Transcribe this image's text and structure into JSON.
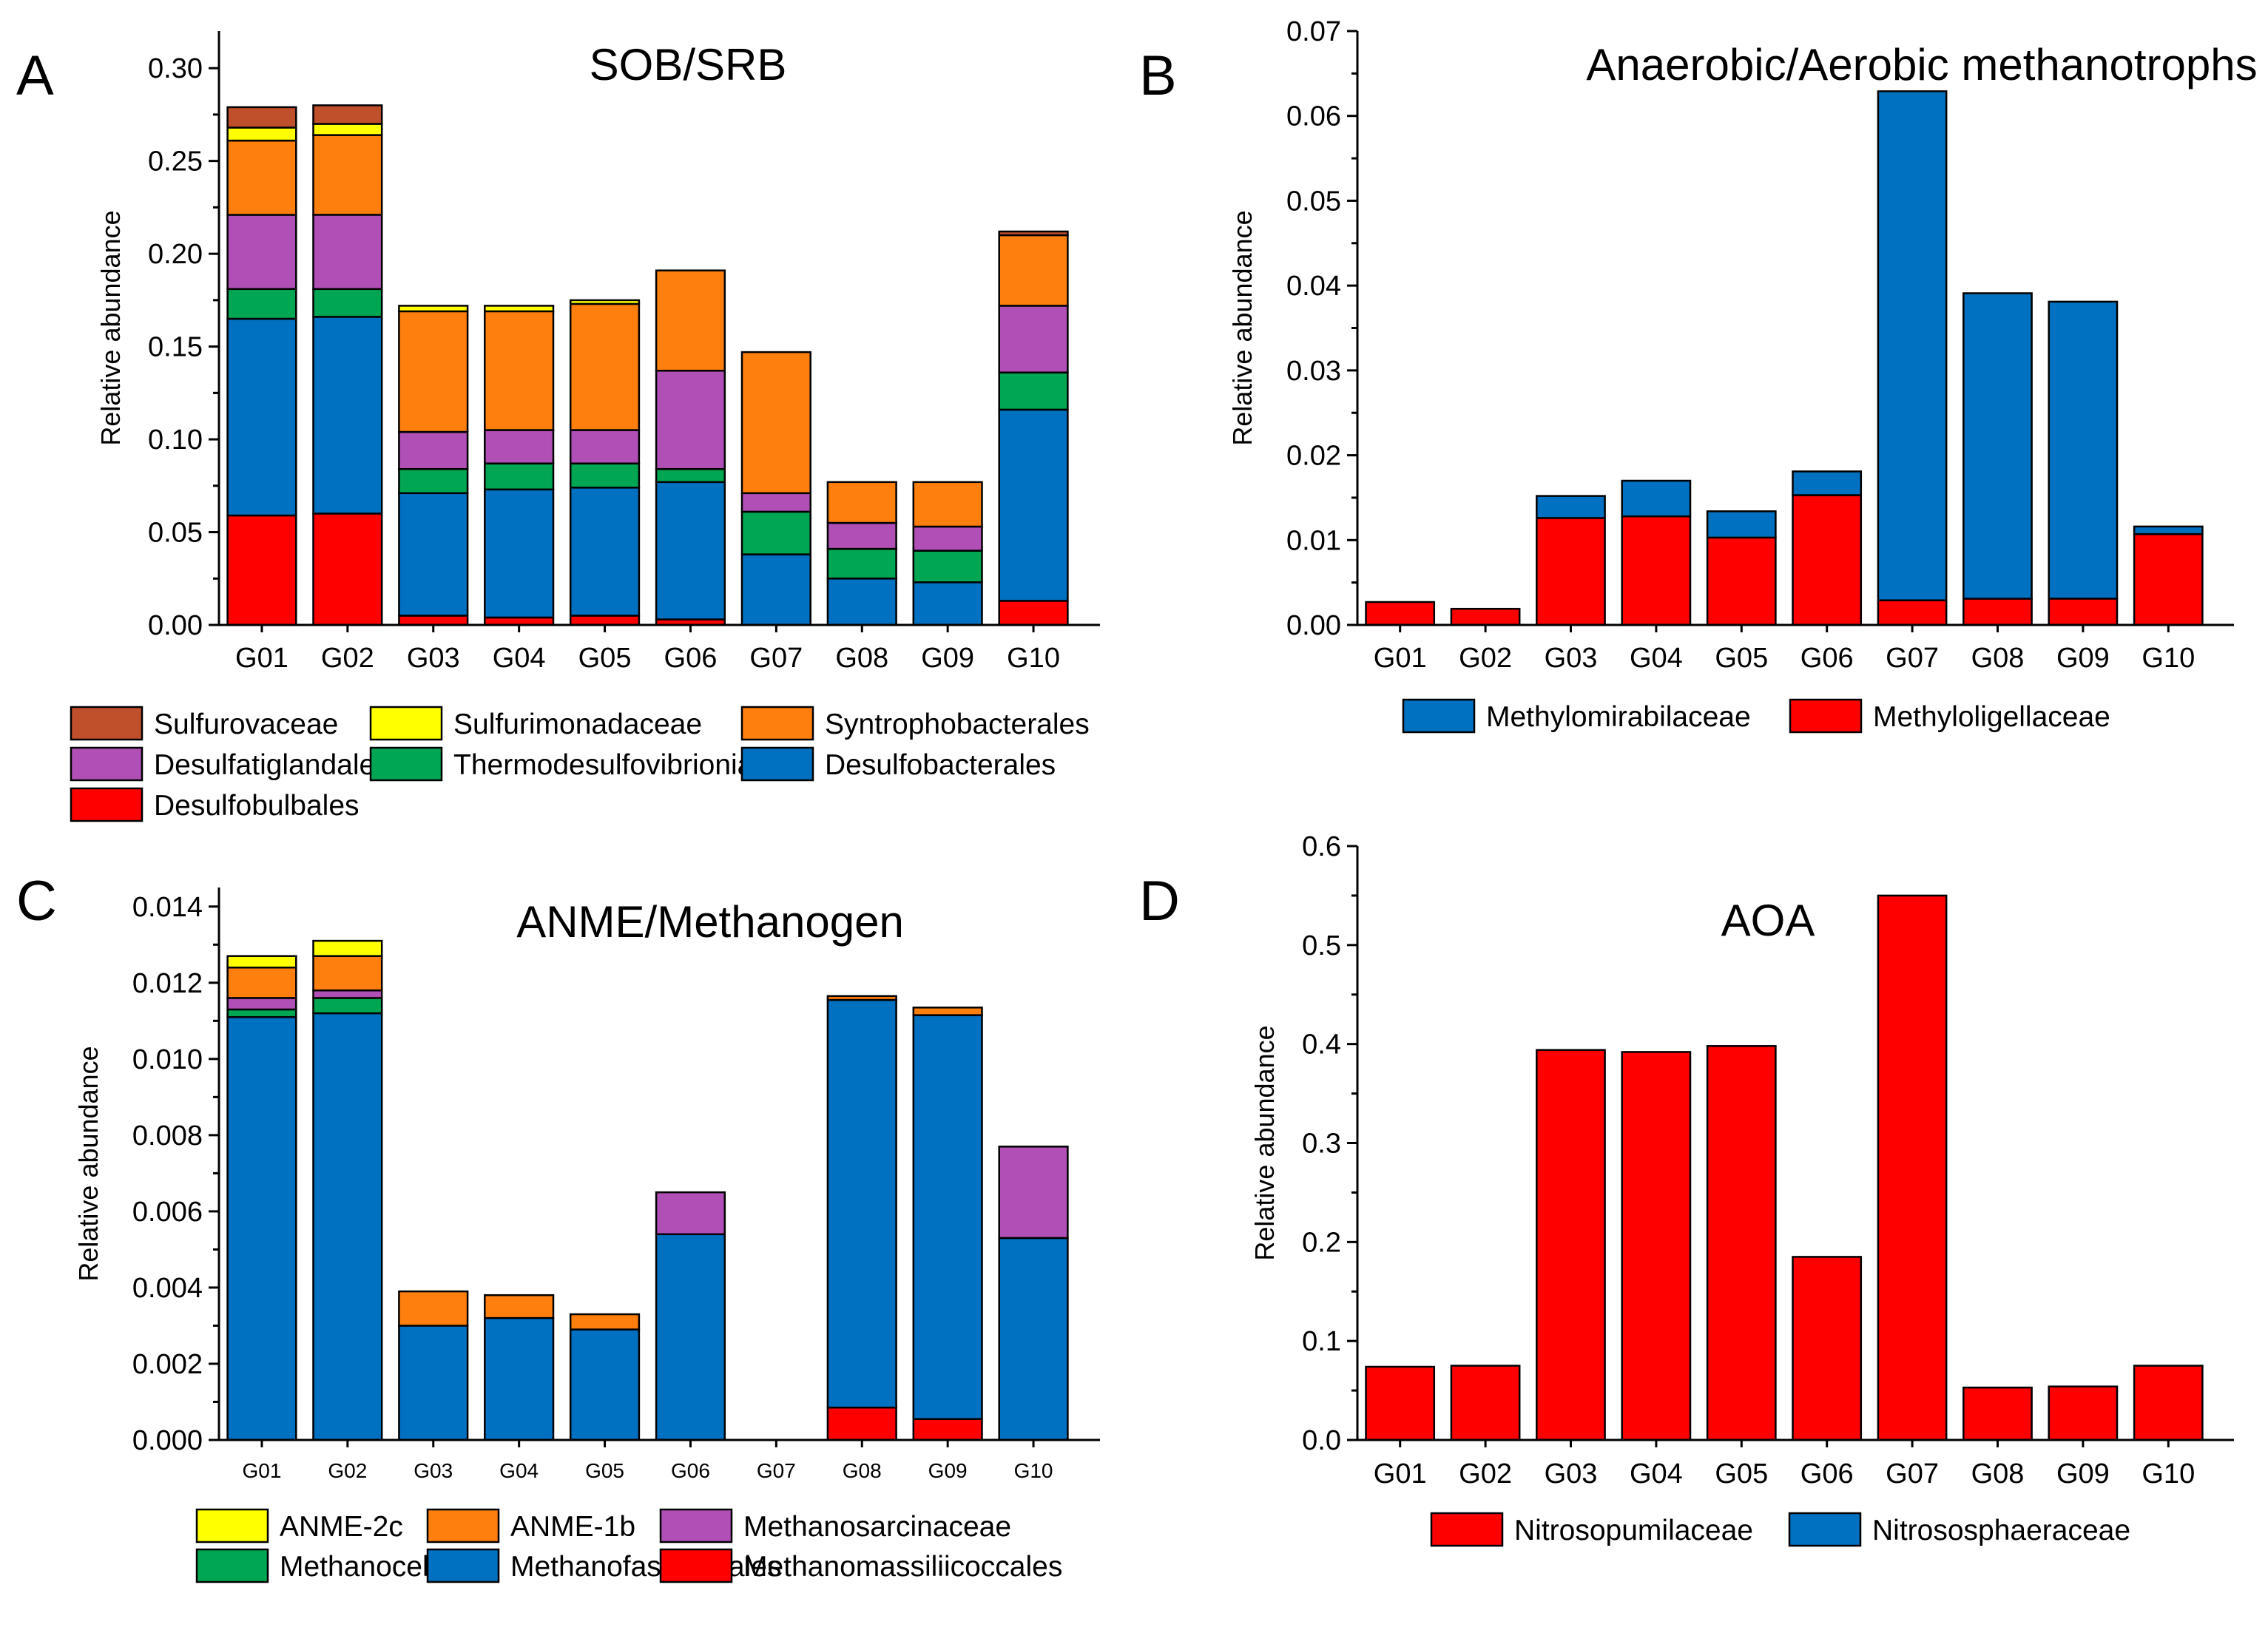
{
  "chart_data": [
    {
      "id": "A",
      "letter": "A",
      "type": "bar",
      "stacked": true,
      "title": "SOB/SRB",
      "ylabel": "Relative abundance",
      "xlabel": "",
      "ylim": [
        0,
        0.32
      ],
      "yticks": [
        "0.00",
        "0.05",
        "0.10",
        "0.15",
        "0.20",
        "0.25",
        "0.30"
      ],
      "categories": [
        "G01",
        "G02",
        "G03",
        "G04",
        "G05",
        "G06",
        "G07",
        "G08",
        "G09",
        "G10"
      ],
      "series": [
        {
          "name": "Desulfobulbales",
          "color": "#ff0000",
          "values": [
            0.059,
            0.06,
            0.005,
            0.004,
            0.005,
            0.003,
            0.0,
            0.0,
            0.0,
            0.013
          ]
        },
        {
          "name": "Desulfobacterales",
          "color": "#0070c0",
          "values": [
            0.106,
            0.106,
            0.066,
            0.069,
            0.069,
            0.074,
            0.038,
            0.025,
            0.023,
            0.103
          ]
        },
        {
          "name": "Thermodesulfovibrionia",
          "color": "#00a651",
          "values": [
            0.016,
            0.015,
            0.013,
            0.014,
            0.013,
            0.007,
            0.023,
            0.016,
            0.017,
            0.02
          ]
        },
        {
          "name": "Desulfatiglandales",
          "color": "#b04fb5",
          "values": [
            0.04,
            0.04,
            0.02,
            0.018,
            0.018,
            0.053,
            0.01,
            0.014,
            0.013,
            0.036
          ]
        },
        {
          "name": "Syntrophobacterales",
          "color": "#ff7f0e",
          "values": [
            0.04,
            0.043,
            0.065,
            0.064,
            0.068,
            0.054,
            0.076,
            0.022,
            0.024,
            0.038
          ]
        },
        {
          "name": "Sulfurimonadaceae",
          "color": "#ffff00",
          "values": [
            0.007,
            0.006,
            0.003,
            0.003,
            0.002,
            0.0,
            0.0,
            0.0,
            0.0,
            0.0
          ]
        },
        {
          "name": "Sulfurovaceae",
          "color": "#c0502b",
          "values": [
            0.011,
            0.01,
            0.0,
            0.0,
            0.0,
            0.0,
            0.0,
            0.0,
            0.0,
            0.002
          ]
        }
      ],
      "legend_order": [
        "Sulfurovaceae",
        "Sulfurimonadaceae",
        "Syntrophobacterales",
        "Desulfatiglandales",
        "Thermodesulfovibrionia",
        "Desulfobacterales",
        "Desulfobulbales"
      ]
    },
    {
      "id": "B",
      "letter": "B",
      "type": "bar",
      "stacked": true,
      "title": "Anaerobic/Aerobic methanotrophs",
      "ylabel": "Relative abundance",
      "xlabel": "",
      "ylim": [
        0,
        0.07
      ],
      "yticks": [
        "0.00",
        "0.01",
        "0.02",
        "0.03",
        "0.04",
        "0.05",
        "0.06",
        "0.07"
      ],
      "categories": [
        "G01",
        "G02",
        "G03",
        "G04",
        "G05",
        "G06",
        "G07",
        "G08",
        "G09",
        "G10"
      ],
      "series": [
        {
          "name": "Methyloligellaceae",
          "color": "#ff0000",
          "values": [
            0.0027,
            0.0019,
            0.0126,
            0.0128,
            0.0103,
            0.0153,
            0.0029,
            0.0031,
            0.0031,
            0.0107
          ]
        },
        {
          "name": "Methylomirabilaceae",
          "color": "#0070c0",
          "values": [
            0.0,
            0.0,
            0.0026,
            0.0042,
            0.0031,
            0.0028,
            0.06,
            0.036,
            0.035,
            0.0009
          ]
        }
      ],
      "legend_order": [
        "Methylomirabilaceae",
        "Methyloligellaceae"
      ]
    },
    {
      "id": "C",
      "letter": "C",
      "type": "bar",
      "stacked": true,
      "title": "ANME/Methanogen",
      "ylabel": "Relative abundance",
      "xlabel": "",
      "ylim": [
        0,
        0.0145
      ],
      "yticks": [
        "0.000",
        "0.002",
        "0.004",
        "0.006",
        "0.008",
        "0.010",
        "0.012",
        "0.014"
      ],
      "categories": [
        "G01",
        "G02",
        "G03",
        "G04",
        "G05",
        "G06",
        "G07",
        "G08",
        "G09",
        "G10"
      ],
      "series": [
        {
          "name": "Methanomassiliicoccales",
          "color": "#ff0000",
          "values": [
            0.0,
            0.0,
            0.0,
            0.0,
            0.0,
            0.0,
            0.0,
            0.00085,
            0.00055,
            0.0
          ]
        },
        {
          "name": "Methanofastidiosales",
          "color": "#0070c0",
          "values": [
            0.0111,
            0.0112,
            0.003,
            0.0032,
            0.0029,
            0.0054,
            0.0,
            0.0107,
            0.0106,
            0.0053
          ]
        },
        {
          "name": "Methanocellales",
          "color": "#00a651",
          "values": [
            0.0002,
            0.0004,
            0.0,
            0.0,
            0.0,
            0.0,
            0.0,
            0.0,
            0.0,
            0.0
          ]
        },
        {
          "name": "Methanosarcinaceae",
          "color": "#b04fb5",
          "values": [
            0.0003,
            0.0002,
            0.0,
            0.0,
            0.0,
            0.0011,
            0.0,
            0.0,
            0.0,
            0.0024
          ]
        },
        {
          "name": "ANME-1b",
          "color": "#ff7f0e",
          "values": [
            0.0008,
            0.0009,
            0.0009,
            0.0006,
            0.0004,
            0.0,
            0.0,
            0.0001,
            0.0002,
            0.0
          ]
        },
        {
          "name": "ANME-2c",
          "color": "#ffff00",
          "values": [
            0.0003,
            0.0004,
            0.0,
            0.0,
            0.0,
            0.0,
            0.0,
            0.0,
            0.0,
            0.0
          ]
        }
      ],
      "legend_order": [
        "ANME-2c",
        "ANME-1b",
        "Methanosarcinaceae",
        "Methanocellales",
        "Methanofastidiosales",
        "Methanomassiliicoccales"
      ]
    },
    {
      "id": "D",
      "letter": "D",
      "type": "bar",
      "stacked": true,
      "title": "AOA",
      "ylabel": "Relative abundance",
      "xlabel": "",
      "ylim": [
        0,
        0.6
      ],
      "yticks": [
        "0.0",
        "0.1",
        "0.2",
        "0.3",
        "0.4",
        "0.5",
        "0.6"
      ],
      "categories": [
        "G01",
        "G02",
        "G03",
        "G04",
        "G05",
        "G06",
        "G07",
        "G08",
        "G09",
        "G10"
      ],
      "series": [
        {
          "name": "Nitrosopumilaceae",
          "color": "#ff0000",
          "values": [
            0.074,
            0.075,
            0.394,
            0.392,
            0.398,
            0.185,
            0.55,
            0.053,
            0.054,
            0.075
          ]
        },
        {
          "name": "Nitrososphaeraceae",
          "color": "#0070c0",
          "values": [
            0.0,
            0.0,
            0.0,
            0.0,
            0.0,
            0.0,
            0.0,
            0.0,
            0.0,
            0.0
          ]
        }
      ],
      "legend_order": [
        "Nitrosopumilaceae",
        "Nitrososphaeraceae"
      ]
    }
  ]
}
